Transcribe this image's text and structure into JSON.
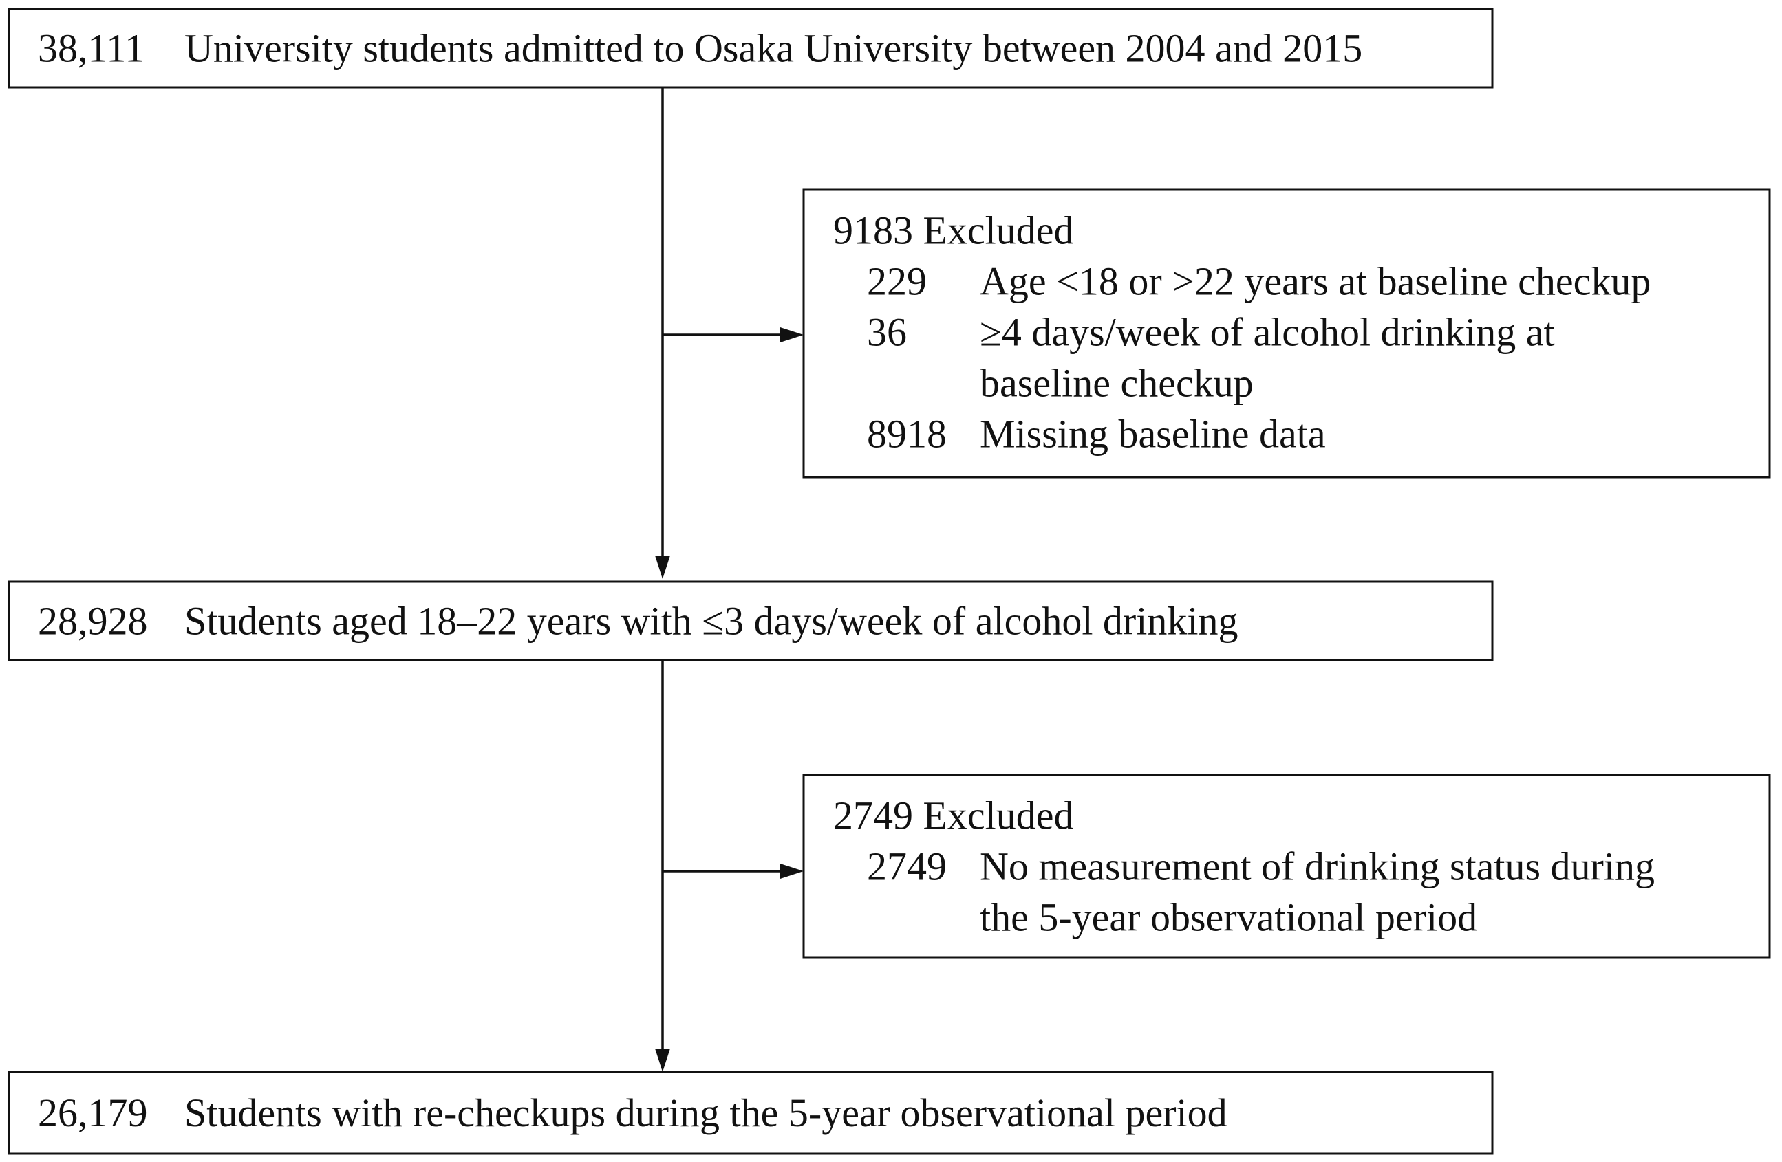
{
  "steps": [
    {
      "count": "38,111",
      "label": "University students admitted to Osaka University between 2004 and 2015"
    },
    {
      "count": "28,928",
      "label": "Students aged 18–22 years with ≤3 days/week of alcohol drinking"
    },
    {
      "count": "26,179",
      "label": "Students with re-checkups during the 5-year observational period"
    }
  ],
  "exclusions": [
    {
      "title": "9183 Excluded",
      "items": [
        {
          "count": "229",
          "label_lines": [
            "Age <18 or >22 years at baseline checkup"
          ]
        },
        {
          "count": "36",
          "label_lines": [
            "≥4 days/week of alcohol drinking at",
            "baseline checkup"
          ]
        },
        {
          "count": "8918",
          "label_lines": [
            "Missing baseline data"
          ]
        }
      ]
    },
    {
      "title": "2749 Excluded",
      "items": [
        {
          "count": "2749",
          "label_lines": [
            "No measurement of drinking status during",
            "the 5-year observational period"
          ]
        }
      ]
    }
  ]
}
